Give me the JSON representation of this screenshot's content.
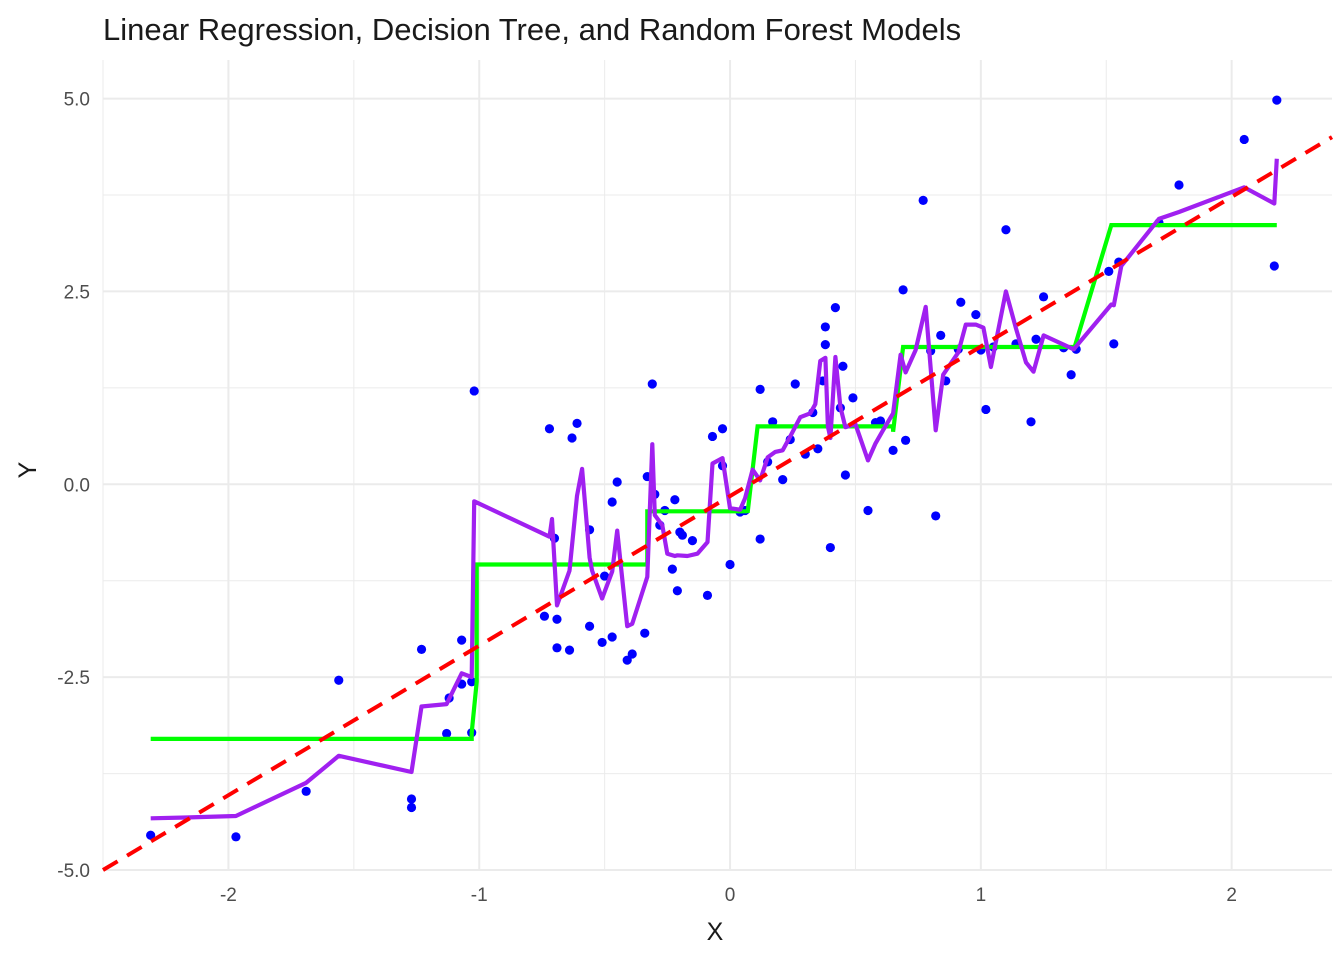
{
  "chart_data": {
    "type": "scatter",
    "title": "Linear Regression, Decision Tree, and Random Forest Models",
    "xlabel": "X",
    "ylabel": "Y",
    "xlim": [
      -2.5,
      2.4
    ],
    "ylim": [
      -5.0,
      5.5
    ],
    "x_ticks": [
      -2,
      -1,
      0,
      1,
      2
    ],
    "x_tick_labels": [
      "-2",
      "-1",
      "0",
      "1",
      "2"
    ],
    "y_ticks": [
      -5.0,
      -2.5,
      0.0,
      2.5,
      5.0
    ],
    "y_tick_labels": [
      "-5.0",
      "-2.5",
      "0.0",
      "2.5",
      "5.0"
    ],
    "grid": true,
    "colors": {
      "points": "#0000ff",
      "linear_regression": "#ff0000",
      "decision_tree": "#00ff00",
      "random_forest": "#a020f0",
      "grid": "#ebebeb"
    },
    "points": [
      [
        -2.31,
        -4.55
      ],
      [
        -1.97,
        -4.57
      ],
      [
        -1.69,
        -3.98
      ],
      [
        -1.56,
        -2.54
      ],
      [
        -1.27,
        -4.08
      ],
      [
        -1.27,
        -4.19
      ],
      [
        -1.23,
        -2.14
      ],
      [
        -1.13,
        -3.23
      ],
      [
        -1.12,
        -2.77
      ],
      [
        -1.07,
        -2.59
      ],
      [
        -1.07,
        -2.02
      ],
      [
        -1.03,
        -3.22
      ],
      [
        -1.03,
        -2.56
      ],
      [
        -1.02,
        1.21
      ],
      [
        -0.74,
        -1.71
      ],
      [
        -0.72,
        0.72
      ],
      [
        -0.7,
        -0.7
      ],
      [
        -0.69,
        -2.12
      ],
      [
        -0.69,
        -1.75
      ],
      [
        -0.64,
        -2.15
      ],
      [
        -0.63,
        0.6
      ],
      [
        -0.61,
        0.79
      ],
      [
        -0.56,
        -1.84
      ],
      [
        -0.56,
        -0.59
      ],
      [
        -0.51,
        -2.05
      ],
      [
        -0.5,
        -1.19
      ],
      [
        -0.47,
        -1.98
      ],
      [
        -0.47,
        -0.23
      ],
      [
        -0.45,
        0.03
      ],
      [
        -0.41,
        -2.28
      ],
      [
        -0.39,
        -2.2
      ],
      [
        -0.34,
        -1.93
      ],
      [
        -0.33,
        0.1
      ],
      [
        -0.31,
        1.3
      ],
      [
        -0.3,
        -0.13
      ],
      [
        -0.28,
        -0.53
      ],
      [
        -0.26,
        -0.34
      ],
      [
        -0.23,
        -1.1
      ],
      [
        -0.22,
        -0.2
      ],
      [
        -0.21,
        -1.38
      ],
      [
        -0.2,
        -0.62
      ],
      [
        -0.19,
        -0.66
      ],
      [
        -0.15,
        -0.73
      ],
      [
        -0.09,
        -1.44
      ],
      [
        -0.07,
        0.62
      ],
      [
        -0.03,
        0.72
      ],
      [
        -0.03,
        0.24
      ],
      [
        0.0,
        -1.04
      ],
      [
        0.04,
        -0.36
      ],
      [
        0.06,
        -0.34
      ],
      [
        0.12,
        1.23
      ],
      [
        0.12,
        -0.71
      ],
      [
        0.15,
        0.29
      ],
      [
        0.17,
        0.81
      ],
      [
        0.21,
        0.06
      ],
      [
        0.24,
        0.58
      ],
      [
        0.26,
        1.3
      ],
      [
        0.3,
        0.39
      ],
      [
        0.33,
        0.93
      ],
      [
        0.35,
        0.46
      ],
      [
        0.37,
        1.34
      ],
      [
        0.38,
        1.81
      ],
      [
        0.38,
        2.04
      ],
      [
        0.4,
        -0.82
      ],
      [
        0.42,
        2.29
      ],
      [
        0.44,
        0.99
      ],
      [
        0.45,
        1.53
      ],
      [
        0.46,
        0.12
      ],
      [
        0.49,
        1.12
      ],
      [
        0.55,
        -0.34
      ],
      [
        0.58,
        0.8
      ],
      [
        0.6,
        0.82
      ],
      [
        0.65,
        0.44
      ],
      [
        0.69,
        2.52
      ],
      [
        0.7,
        0.57
      ],
      [
        0.77,
        3.68
      ],
      [
        0.8,
        1.73
      ],
      [
        0.82,
        -0.41
      ],
      [
        0.84,
        1.93
      ],
      [
        0.86,
        1.34
      ],
      [
        0.91,
        1.75
      ],
      [
        0.92,
        2.36
      ],
      [
        0.98,
        2.2
      ],
      [
        1.0,
        1.74
      ],
      [
        1.02,
        0.97
      ],
      [
        1.05,
        1.78
      ],
      [
        1.1,
        3.3
      ],
      [
        1.14,
        1.82
      ],
      [
        1.2,
        0.81
      ],
      [
        1.22,
        1.88
      ],
      [
        1.25,
        2.43
      ],
      [
        1.33,
        1.77
      ],
      [
        1.36,
        1.42
      ],
      [
        1.38,
        1.75
      ],
      [
        1.51,
        2.76
      ],
      [
        1.53,
        1.82
      ],
      [
        1.55,
        2.88
      ],
      [
        1.71,
        3.39
      ],
      [
        1.79,
        3.88
      ],
      [
        2.05,
        4.47
      ],
      [
        2.17,
        2.83
      ],
      [
        2.18,
        4.98
      ]
    ],
    "linear_regression": {
      "x": [
        -2.5,
        2.4
      ],
      "y": [
        -5.0,
        4.5
      ]
    },
    "decision_tree": {
      "x": [
        -2.31,
        -1.03,
        -1.03,
        -1.01,
        -1.01,
        -0.33,
        -0.33,
        0.07,
        0.07,
        0.11,
        0.11,
        0.65,
        0.65,
        0.69,
        0.69,
        1.37,
        1.37,
        1.52,
        1.52,
        2.18
      ],
      "y": [
        -3.3,
        -3.3,
        -3.22,
        -2.56,
        -1.04,
        -1.04,
        -0.35,
        -0.35,
        -0.37,
        0.75,
        0.75,
        0.75,
        0.68,
        1.78,
        1.78,
        1.78,
        1.74,
        3.36,
        3.36,
        3.36
      ]
    },
    "random_forest": {
      "x": [
        -2.31,
        -2.17,
        -1.97,
        -1.69,
        -1.56,
        -1.27,
        -1.23,
        -1.13,
        -1.07,
        -1.03,
        -1.02,
        -0.72,
        -0.71,
        -0.69,
        -0.64,
        -0.61,
        -0.59,
        -0.56,
        -0.55,
        -0.51,
        -0.47,
        -0.45,
        -0.41,
        -0.39,
        -0.33,
        -0.31,
        -0.3,
        -0.27,
        -0.25,
        -0.22,
        -0.21,
        -0.17,
        -0.13,
        -0.09,
        -0.07,
        -0.03,
        0.0,
        0.04,
        0.06,
        0.09,
        0.12,
        0.15,
        0.18,
        0.21,
        0.24,
        0.28,
        0.32,
        0.34,
        0.36,
        0.38,
        0.39,
        0.4,
        0.42,
        0.44,
        0.46,
        0.5,
        0.55,
        0.58,
        0.61,
        0.65,
        0.68,
        0.7,
        0.74,
        0.78,
        0.82,
        0.85,
        0.91,
        0.94,
        0.98,
        1.01,
        1.04,
        1.1,
        1.14,
        1.18,
        1.21,
        1.25,
        1.37,
        1.52,
        1.53,
        1.56,
        1.71,
        1.79,
        2.05,
        2.17,
        2.18
      ],
      "y": [
        -4.33,
        -4.32,
        -4.3,
        -3.87,
        -3.52,
        -3.73,
        -2.88,
        -2.85,
        -2.45,
        -2.5,
        -0.22,
        -0.68,
        -0.45,
        -1.57,
        -1.12,
        -0.15,
        0.2,
        -0.95,
        -1.12,
        -1.48,
        -1.13,
        -0.6,
        -1.84,
        -1.81,
        -1.2,
        0.52,
        -0.4,
        -0.53,
        -0.9,
        -0.93,
        -0.92,
        -0.93,
        -0.9,
        -0.75,
        0.27,
        0.34,
        -0.31,
        -0.33,
        -0.18,
        0.19,
        0.05,
        0.35,
        0.42,
        0.44,
        0.62,
        0.87,
        0.92,
        1.04,
        1.6,
        1.64,
        0.75,
        0.6,
        1.65,
        1.0,
        0.74,
        0.78,
        0.31,
        0.53,
        0.7,
        0.92,
        1.68,
        1.45,
        1.74,
        2.3,
        0.7,
        1.42,
        1.71,
        2.07,
        2.07,
        2.03,
        1.52,
        2.5,
        2.02,
        1.58,
        1.46,
        1.93,
        1.75,
        2.33,
        2.32,
        2.83,
        3.44,
        3.53,
        3.85,
        3.64,
        4.22
      ]
    }
  }
}
